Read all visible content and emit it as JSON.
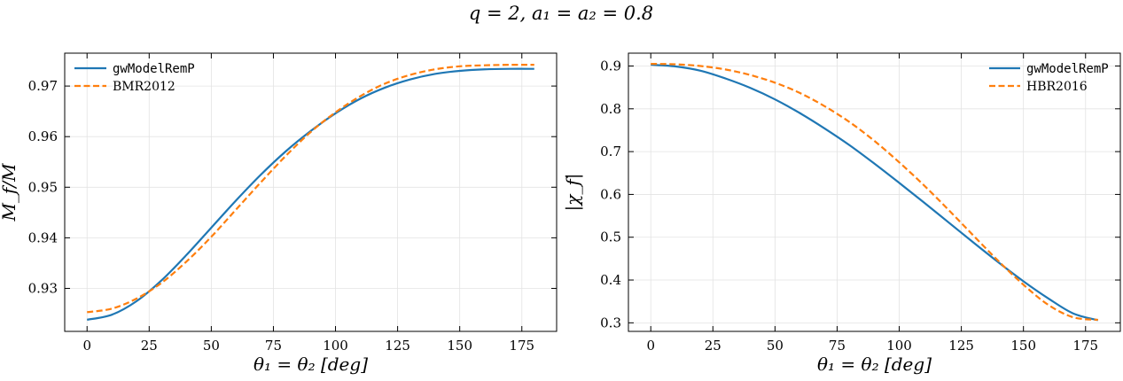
{
  "figure": {
    "suptitle": "q = 2, a₁ = a₂ = 0.8"
  },
  "colors": {
    "blue": "#1f77b4",
    "orange": "#ff7f0e",
    "grid": "#e3e3e3"
  },
  "chart_data": [
    {
      "type": "line",
      "xlabel": "θ₁ = θ₂ [deg]",
      "ylabel": "M_f/M",
      "xlim": [
        -9,
        189
      ],
      "ylim": [
        0.9215,
        0.9765
      ],
      "xticks": [
        0,
        25,
        50,
        75,
        100,
        125,
        150,
        175
      ],
      "yticks": [
        0.93,
        0.94,
        0.95,
        0.96,
        0.97
      ],
      "ytick_labels": [
        "0.93",
        "0.94",
        "0.95",
        "0.96",
        "0.97"
      ],
      "grid": true,
      "legend": "top-left",
      "x": [
        0,
        10,
        20,
        30,
        40,
        50,
        60,
        70,
        80,
        90,
        100,
        110,
        120,
        130,
        140,
        150,
        160,
        170,
        180
      ],
      "series": [
        {
          "name": "gwModelRemP",
          "style": "solid",
          "values": [
            0.9238,
            0.9248,
            0.9275,
            0.9316,
            0.9366,
            0.942,
            0.9474,
            0.9525,
            0.9571,
            0.9611,
            0.9646,
            0.9675,
            0.9697,
            0.9713,
            0.9724,
            0.973,
            0.9733,
            0.9734,
            0.9734
          ]
        },
        {
          "name": "BMR2012",
          "style": "dashed",
          "values": [
            0.9253,
            0.926,
            0.928,
            0.9311,
            0.9353,
            0.9402,
            0.9456,
            0.951,
            0.9562,
            0.9609,
            0.9648,
            0.968,
            0.9705,
            0.9722,
            0.9733,
            0.9739,
            0.9741,
            0.9742,
            0.9742
          ]
        }
      ]
    },
    {
      "type": "line",
      "xlabel": "θ₁ = θ₂ [deg]",
      "ylabel": "|χ_f|",
      "xlim": [
        -9,
        189
      ],
      "ylim": [
        0.28,
        0.93
      ],
      "xticks": [
        0,
        25,
        50,
        75,
        100,
        125,
        150,
        175
      ],
      "yticks": [
        0.3,
        0.4,
        0.5,
        0.6,
        0.7,
        0.8,
        0.9
      ],
      "ytick_labels": [
        "0.3",
        "0.4",
        "0.5",
        "0.6",
        "0.7",
        "0.8",
        "0.9"
      ],
      "grid": true,
      "legend": "top-right",
      "x": [
        0,
        10,
        20,
        30,
        40,
        50,
        60,
        70,
        80,
        90,
        100,
        110,
        120,
        130,
        140,
        150,
        160,
        170,
        180
      ],
      "series": [
        {
          "name": "gwModelRemP",
          "style": "solid",
          "values": [
            0.903,
            0.899,
            0.889,
            0.871,
            0.849,
            0.822,
            0.79,
            0.754,
            0.715,
            0.672,
            0.627,
            0.581,
            0.534,
            0.487,
            0.441,
            0.397,
            0.357,
            0.322,
            0.306
          ]
        },
        {
          "name": "HBR2016",
          "style": "dashed",
          "values": [
            0.905,
            0.904,
            0.9,
            0.892,
            0.879,
            0.861,
            0.837,
            0.806,
            0.769,
            0.725,
            0.675,
            0.621,
            0.563,
            0.503,
            0.444,
            0.389,
            0.342,
            0.313,
            0.307
          ]
        }
      ]
    }
  ]
}
